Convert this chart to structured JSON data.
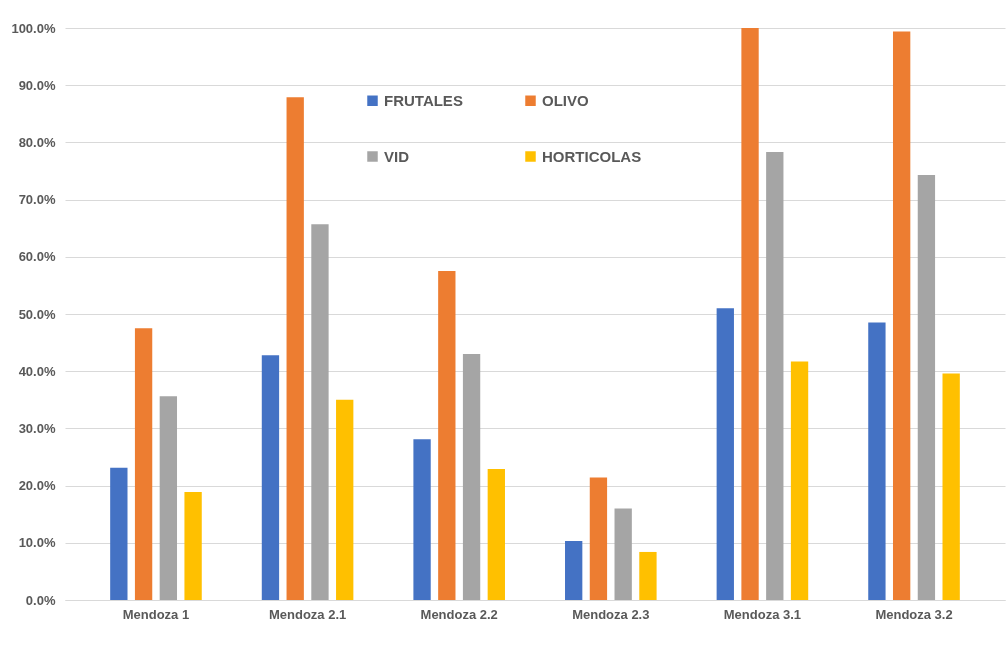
{
  "chart_data": {
    "type": "bar",
    "categories": [
      "Mendoza 1",
      "Mendoza 2.1",
      "Mendoza 2.2",
      "Mendoza 2.3",
      "Mendoza 3.1",
      "Mendoza 3.2"
    ],
    "series": [
      {
        "name": "FRUTALES",
        "color": "#4472c4",
        "values": [
          23.1,
          42.8,
          28.1,
          10.3,
          51.0,
          48.5
        ]
      },
      {
        "name": "OLIVO",
        "color": "#ed7d31",
        "values": [
          47.5,
          87.9,
          57.5,
          21.4,
          100.0,
          99.4
        ]
      },
      {
        "name": "VID",
        "color": "#a5a5a5",
        "values": [
          35.6,
          65.7,
          43.0,
          16.0,
          78.3,
          74.3
        ]
      },
      {
        "name": "HORTICOLAS",
        "color": "#ffc000",
        "values": [
          18.9,
          35.0,
          22.9,
          8.4,
          41.7,
          39.6
        ]
      }
    ],
    "ylim": [
      0,
      100
    ],
    "yticks": [
      {
        "value": 0,
        "label": "0.0%"
      },
      {
        "value": 10,
        "label": "10.0%"
      },
      {
        "value": 20,
        "label": "20.0%"
      },
      {
        "value": 30,
        "label": "30.0%"
      },
      {
        "value": 40,
        "label": "40.0%"
      },
      {
        "value": 50,
        "label": "50.0%"
      },
      {
        "value": 60,
        "label": "60.0%"
      },
      {
        "value": 70,
        "label": "70.0%"
      },
      {
        "value": 80,
        "label": "80.0%"
      },
      {
        "value": 90,
        "label": "90.0%"
      },
      {
        "value": 100,
        "label": "100.0%"
      }
    ],
    "grid": "y",
    "legend": "top"
  }
}
